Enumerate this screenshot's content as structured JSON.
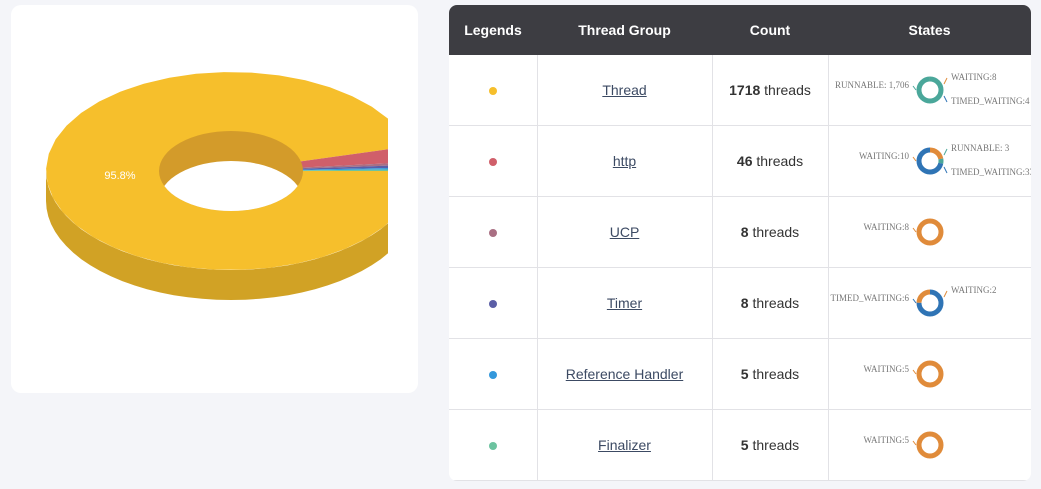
{
  "donut": {
    "label": "95.8%"
  },
  "table": {
    "headers": [
      "Legends",
      "Thread Group",
      "Count",
      "States"
    ],
    "rows": [
      {
        "color": "#f6bf2c",
        "group": "Thread",
        "count": 1718,
        "unit": "threads",
        "states": [
          {
            "label": "RUNNABLE: 1,706",
            "value": 1706,
            "color": "#4aa79a"
          },
          {
            "label": "WAITING:8",
            "value": 8,
            "color": "#e08b3a"
          },
          {
            "label": "TIMED_WAITING:4",
            "value": 4,
            "color": "#2f74b5"
          }
        ]
      },
      {
        "color": "#d05f6a",
        "group": "http",
        "count": 46,
        "unit": "threads",
        "states": [
          {
            "label": "WAITING:10",
            "value": 10,
            "color": "#e08b3a"
          },
          {
            "label": "RUNNABLE: 3",
            "value": 3,
            "color": "#4aa79a"
          },
          {
            "label": "TIMED_WAITING:33",
            "value": 33,
            "color": "#2f74b5"
          }
        ]
      },
      {
        "color": "#a96f83",
        "group": "UCP",
        "count": 8,
        "unit": "threads",
        "states": [
          {
            "label": "WAITING:8",
            "value": 8,
            "color": "#e08b3a"
          }
        ]
      },
      {
        "color": "#5b5ea6",
        "group": "Timer",
        "count": 8,
        "unit": "threads",
        "states": [
          {
            "label": "TIMED_WAITING:6",
            "value": 6,
            "color": "#2f74b5"
          },
          {
            "label": "WAITING:2",
            "value": 2,
            "color": "#e08b3a"
          }
        ]
      },
      {
        "color": "#3498db",
        "group": "Reference Handler",
        "count": 5,
        "unit": "threads",
        "states": [
          {
            "label": "WAITING:5",
            "value": 5,
            "color": "#e08b3a"
          }
        ]
      },
      {
        "color": "#6cc3a0",
        "group": "Finalizer",
        "count": 5,
        "unit": "threads",
        "states": [
          {
            "label": "WAITING:5",
            "value": 5,
            "color": "#e08b3a"
          }
        ]
      }
    ]
  }
}
